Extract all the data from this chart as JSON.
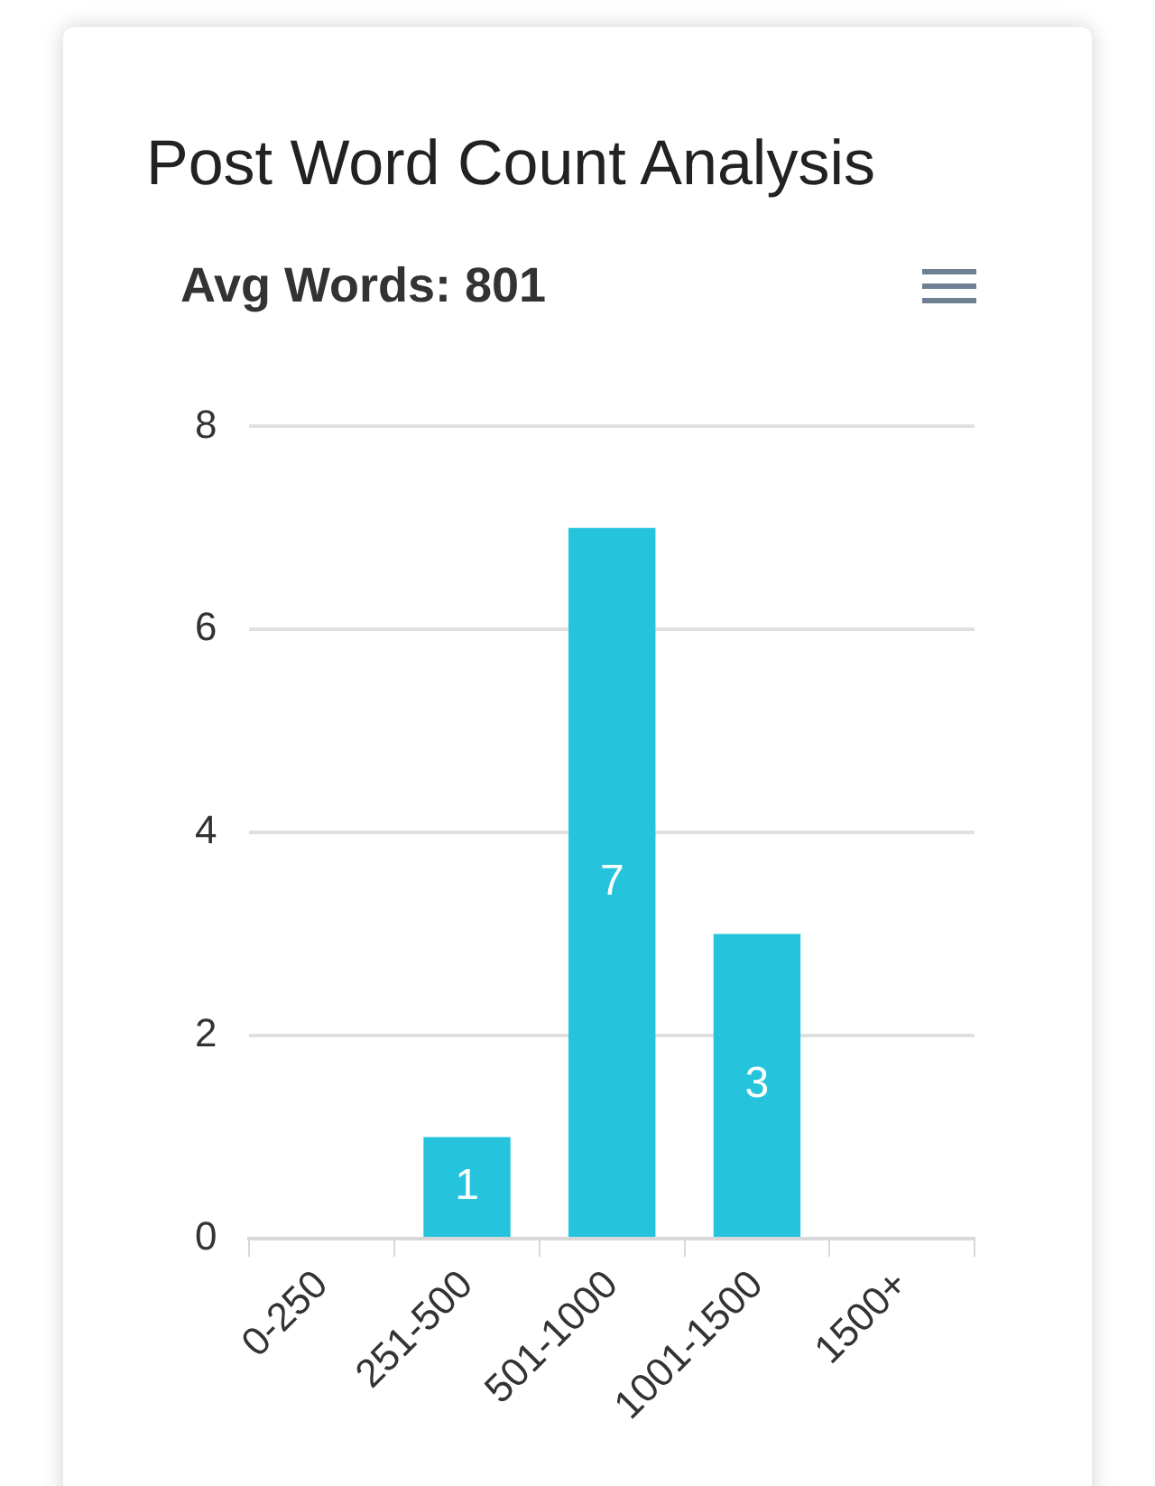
{
  "chart_data": {
    "type": "bar",
    "title": "Post Word Count Analysis",
    "subtitle": "Avg Words: 801",
    "categories": [
      "0-250",
      "251-500",
      "501-1000",
      "1001-1500",
      "1500+"
    ],
    "values": [
      0,
      1,
      7,
      3,
      0
    ],
    "value_labels": [
      null,
      "1",
      "7",
      "3",
      null
    ],
    "color": "#26c4dc",
    "ylim": [
      0,
      8
    ],
    "yticks": [
      0,
      2,
      4,
      6,
      8
    ],
    "grid": "y"
  }
}
